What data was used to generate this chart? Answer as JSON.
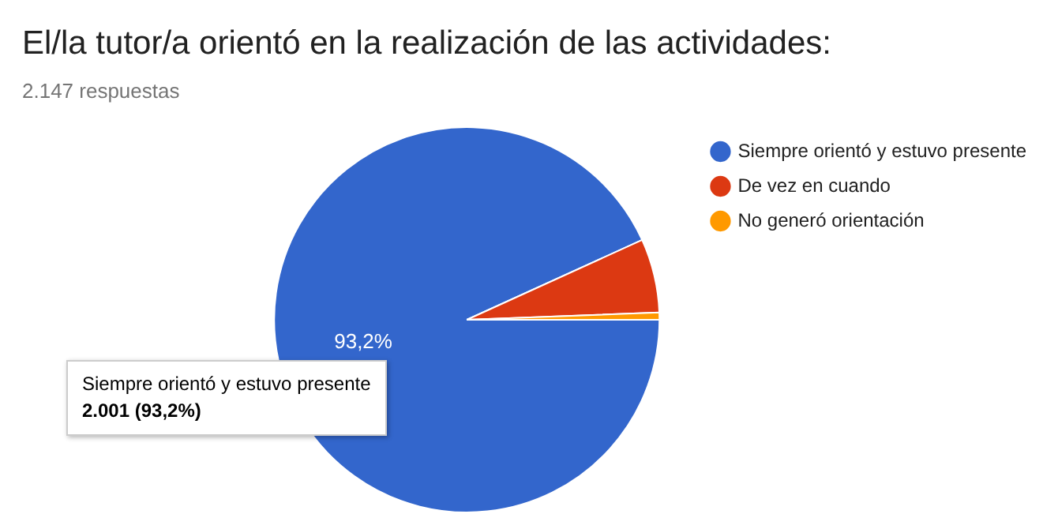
{
  "chart_data": {
    "type": "pie",
    "title": "El/la tutor/a orientó en la realización de las actividades:",
    "subtitle": "2.147 respuestas",
    "categories": [
      "Siempre orientó y estuvo presente",
      "De vez en cuando",
      "No generó orientación"
    ],
    "values": [
      93.2,
      6.2,
      0.6
    ],
    "colors": [
      "#3366cc",
      "#dc3912",
      "#ff9900"
    ],
    "value_labels": [
      "93,2%",
      null,
      null
    ],
    "annotations": [
      "Siempre orientó y estuvo presente\n2.001 (93,2%)"
    ],
    "legend": "right"
  }
}
